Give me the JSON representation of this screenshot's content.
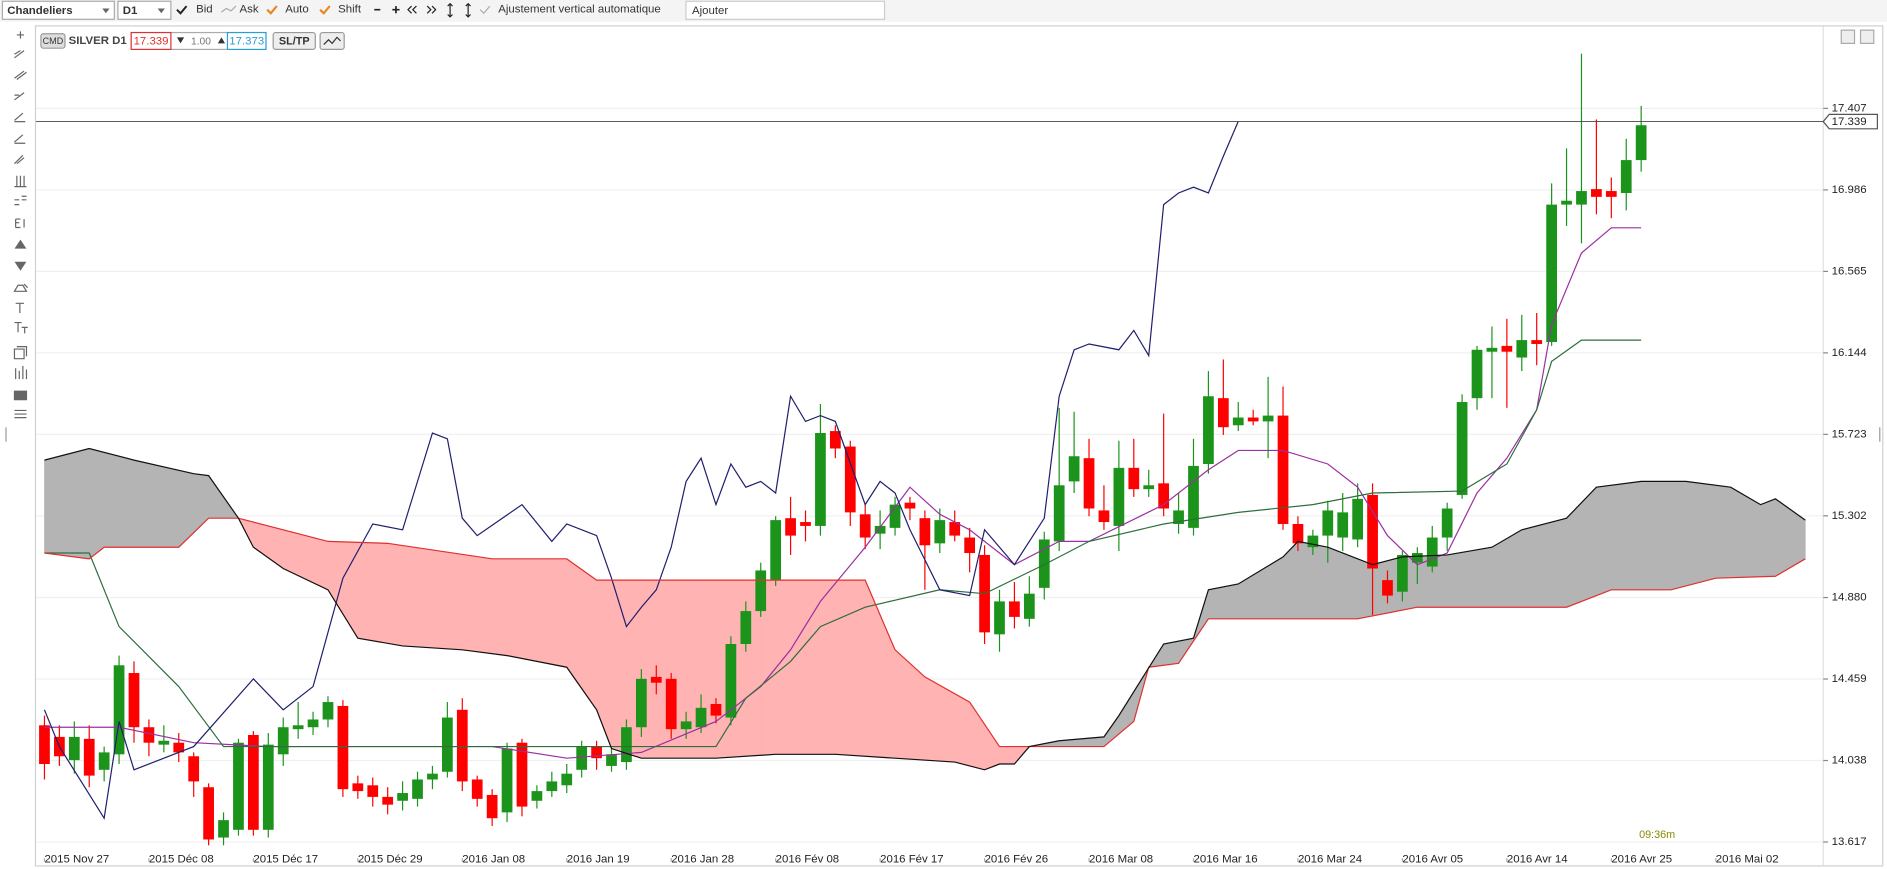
{
  "toolbar": {
    "chart_style": "Chandeliers",
    "timeframe": "D1",
    "options": [
      "Bid",
      "Ask",
      "Auto",
      "Shift"
    ],
    "auto_scale": "Ajustement vertical automatique",
    "search_placeholder": "Ajouter"
  },
  "header": {
    "tag": "CMD",
    "bid": 17.339,
    "lot": "1.00",
    "ask": 17.373,
    "sltp": "SL/TP"
  },
  "status": {
    "time": "09:36m"
  },
  "chart_data": {
    "type": "candlestick",
    "overlay": "ichimoku",
    "title": "SILVER D1",
    "xlim": [
      -0.56,
      119.2
    ],
    "ylim": [
      13.54,
      17.83
    ],
    "grid": true,
    "up_color": "#1c941c",
    "down_color": "#ff0000",
    "cloud_colors": [
      "#ffb3b3",
      "#b4b4b4"
    ],
    "current_price": 17.339,
    "yticks": [
      13.617,
      14.038,
      14.459,
      {
        "value": 14.88,
        "label": "14.880"
      },
      15.302,
      15.723,
      16.144,
      16.565,
      16.986,
      17.407
    ],
    "xticks": [
      {
        "value": 0,
        "label": "2015 Nov 27"
      },
      {
        "value": 7,
        "label": "2015 Déc 08"
      },
      {
        "value": 14,
        "label": "2015 Déc 17"
      },
      {
        "value": 21,
        "label": "2015 Déc 29"
      },
      {
        "value": 28,
        "label": "2016 Jan 08"
      },
      {
        "value": 35,
        "label": "2016 Jan 19"
      },
      {
        "value": 42,
        "label": "2016 Jan 28"
      },
      {
        "value": 49,
        "label": "2016 Fév 08"
      },
      {
        "value": 56,
        "label": "2016 Fév 17"
      },
      {
        "value": 63,
        "label": "2016 Fév 26"
      },
      {
        "value": 70,
        "label": "2016 Mar 08"
      },
      {
        "value": 77,
        "label": "2016 Mar 16"
      },
      {
        "value": 84,
        "label": "2016 Mar 24"
      },
      {
        "value": 91,
        "label": "2016 Avr 05"
      },
      {
        "value": 98,
        "label": "2016 Avr 14"
      },
      {
        "value": 105,
        "label": "2016 Avr 25"
      },
      {
        "value": 112,
        "label": "2016 Mai 02"
      }
    ],
    "open": [
      14.22,
      14.16,
      14.04,
      14.15,
      13.99,
      14.07,
      14.49,
      14.21,
      14.12,
      14.13,
      14.06,
      13.9,
      13.64,
      13.68,
      14.17,
      13.68,
      14.07,
      14.2,
      14.21,
      14.25,
      14.32,
      13.92,
      13.91,
      13.85,
      13.83,
      13.84,
      13.94,
      13.98,
      14.3,
      13.94,
      13.86,
      13.77,
      14.13,
      13.83,
      13.88,
      13.91,
      13.99,
      14.11,
      14.01,
      14.03,
      14.21,
      14.47,
      14.46,
      14.2,
      14.21,
      14.33,
      14.26,
      14.64,
      14.81,
      14.97,
      15.29,
      15.27,
      15.25,
      15.74,
      15.66,
      15.31,
      15.21,
      15.24,
      15.37,
      15.29,
      15.16,
      15.27,
      15.19,
      15.1,
      14.69,
      14.86,
      14.77,
      14.93,
      15.17,
      15.48,
      15.6,
      15.33,
      15.25,
      15.55,
      15.44,
      15.47,
      15.26,
      15.24,
      15.57,
      15.91,
      15.77,
      15.81,
      15.79,
      15.82,
      15.26,
      15.14,
      15.2,
      15.19,
      15.18,
      15.41,
      14.97,
      14.91,
      15.06,
      15.04,
      15.19,
      15.41,
      15.91,
      16.15,
      16.18,
      16.12,
      16.21,
      16.2,
      16.91,
      16.91,
      16.99,
      16.98,
      16.97,
      17.14
    ],
    "high": [
      14.27,
      14.22,
      14.24,
      14.22,
      14.11,
      14.58,
      14.55,
      14.25,
      14.22,
      14.18,
      14.08,
      13.92,
      13.77,
      14.15,
      14.19,
      14.18,
      14.26,
      14.34,
      14.29,
      14.37,
      14.35,
      13.96,
      13.95,
      13.9,
      13.93,
      13.98,
      14.01,
      14.34,
      14.36,
      13.96,
      13.89,
      14.13,
      14.15,
      13.91,
      13.98,
      14.02,
      14.14,
      14.14,
      14.1,
      14.25,
      14.51,
      14.53,
      14.49,
      14.29,
      14.38,
      14.36,
      14.68,
      14.86,
      15.06,
      15.3,
      15.4,
      15.33,
      15.88,
      15.77,
      15.69,
      15.36,
      15.33,
      15.4,
      15.4,
      15.33,
      15.34,
      15.33,
      15.24,
      15.15,
      14.92,
      14.96,
      14.99,
      15.22,
      15.86,
      15.84,
      15.7,
      15.46,
      15.69,
      15.7,
      15.54,
      15.83,
      15.42,
      15.7,
      16.05,
      16.11,
      15.89,
      15.85,
      16.02,
      15.97,
      15.3,
      15.23,
      15.38,
      15.42,
      15.47,
      15.47,
      15.02,
      15.12,
      15.14,
      15.25,
      15.37,
      15.93,
      16.18,
      16.28,
      16.32,
      16.34,
      16.35,
      17.02,
      17.2,
      17.69,
      17.35,
      17.05,
      17.25,
      17.42
    ],
    "low": [
      13.94,
      14.01,
      13.97,
      13.9,
      13.93,
      14.02,
      14.13,
      14.06,
      14.08,
      14.03,
      13.85,
      13.6,
      13.6,
      13.65,
      13.65,
      13.64,
      14.01,
      14.15,
      14.17,
      14.21,
      13.85,
      13.84,
      13.8,
      13.76,
      13.78,
      13.8,
      13.89,
      13.95,
      13.88,
      13.8,
      13.7,
      13.72,
      13.75,
      13.79,
      13.85,
      13.87,
      13.95,
      13.99,
      13.98,
      13.99,
      14.16,
      14.38,
      14.15,
      14.15,
      14.18,
      14.23,
      14.22,
      14.6,
      14.78,
      14.94,
      15.1,
      15.17,
      15.2,
      15.6,
      15.25,
      15.13,
      15.13,
      15.2,
      15.28,
      14.92,
      15.11,
      15.17,
      15.01,
      14.64,
      14.6,
      14.72,
      14.73,
      14.87,
      15.12,
      15.42,
      15.3,
      15.23,
      15.12,
      15.4,
      15.4,
      15.3,
      15.21,
      15.2,
      15.52,
      15.72,
      15.74,
      15.77,
      15.6,
      15.23,
      15.12,
      15.1,
      15.06,
      15.12,
      15.14,
      14.79,
      14.85,
      14.86,
      14.95,
      15.01,
      15.12,
      15.39,
      15.85,
      15.91,
      15.86,
      16.05,
      16.08,
      16.18,
      16.8,
      16.71,
      16.86,
      16.84,
      16.88,
      17.08
    ],
    "close": [
      14.02,
      14.06,
      14.16,
      13.96,
      14.08,
      14.53,
      14.21,
      14.13,
      14.14,
      14.08,
      13.93,
      13.63,
      13.73,
      14.13,
      13.68,
      14.12,
      14.21,
      14.22,
      14.25,
      14.34,
      13.89,
      13.88,
      13.85,
      13.81,
      13.87,
      13.94,
      13.97,
      14.26,
      13.93,
      13.84,
      13.74,
      14.1,
      13.8,
      13.88,
      13.93,
      13.97,
      14.11,
      14.05,
      14.07,
      14.21,
      14.46,
      14.44,
      14.2,
      14.24,
      14.31,
      14.27,
      14.64,
      14.81,
      15.02,
      15.28,
      15.2,
      15.25,
      15.73,
      15.65,
      15.32,
      15.19,
      15.25,
      15.36,
      15.34,
      15.15,
      15.28,
      15.2,
      15.11,
      14.7,
      14.86,
      14.78,
      14.9,
      15.18,
      15.46,
      15.61,
      15.34,
      15.27,
      15.55,
      15.44,
      15.46,
      15.34,
      15.33,
      15.56,
      15.92,
      15.76,
      15.81,
      15.79,
      15.82,
      15.26,
      15.16,
      15.2,
      15.33,
      15.32,
      15.39,
      15.03,
      14.89,
      15.1,
      15.11,
      15.19,
      15.34,
      15.89,
      16.16,
      16.17,
      16.15,
      16.21,
      16.19,
      16.91,
      16.93,
      16.98,
      16.95,
      16.95,
      17.14,
      17.32
    ],
    "series": [
      {
        "color": "#9b30a0",
        "x": [
          0,
          5,
          10,
          15,
          20,
          25,
          30,
          35,
          40,
          45,
          48,
          50,
          52,
          55,
          58,
          60,
          62,
          65,
          68,
          70,
          75,
          78,
          80,
          83,
          86,
          88,
          90,
          92,
          94,
          96,
          98,
          100,
          101,
          103,
          105,
          107
        ],
        "values": [
          14.21,
          14.21,
          14.13,
          14.11,
          14.11,
          14.11,
          14.11,
          14.05,
          14.08,
          14.24,
          14.42,
          14.61,
          14.86,
          15.14,
          15.45,
          15.31,
          15.23,
          15.05,
          15.17,
          15.17,
          15.36,
          15.54,
          15.64,
          15.64,
          15.57,
          15.45,
          15.2,
          15.05,
          15.11,
          15.42,
          15.6,
          15.85,
          16.29,
          16.66,
          16.79,
          16.79
        ]
      },
      {
        "color": "#2e6e3e",
        "x": [
          0,
          3,
          5,
          9,
          12,
          40,
          45,
          47,
          50,
          52,
          55,
          60,
          63,
          67,
          70,
          75,
          80,
          85,
          89,
          95,
          98,
          100,
          101,
          103,
          107
        ],
        "values": [
          15.11,
          15.11,
          14.73,
          14.42,
          14.11,
          14.11,
          14.11,
          14.36,
          14.55,
          14.73,
          14.83,
          14.92,
          14.9,
          15.05,
          15.17,
          15.26,
          15.32,
          15.36,
          15.42,
          15.43,
          15.57,
          15.85,
          16.1,
          16.21,
          16.21
        ]
      },
      {
        "color": "#1f1f6e",
        "x": [
          0,
          1,
          4,
          5,
          6,
          10,
          14,
          16,
          18,
          20,
          22,
          24,
          26,
          27,
          28,
          29,
          32,
          34,
          35,
          37,
          38,
          39,
          40,
          41,
          42,
          43,
          44,
          45,
          46,
          47,
          48,
          49,
          50,
          51,
          52,
          53,
          55,
          56,
          57,
          58,
          60,
          62,
          63,
          65,
          67,
          68,
          69,
          70,
          72,
          73,
          74,
          75,
          76,
          77,
          78,
          79,
          80
        ],
        "values": [
          14.3,
          14.11,
          13.74,
          14.24,
          13.99,
          14.11,
          14.46,
          14.3,
          14.42,
          14.98,
          15.26,
          15.23,
          15.73,
          15.7,
          15.29,
          15.2,
          15.36,
          15.17,
          15.26,
          15.2,
          14.98,
          14.73,
          14.83,
          14.92,
          15.14,
          15.48,
          15.6,
          15.36,
          15.57,
          15.45,
          15.48,
          15.42,
          15.92,
          15.79,
          15.82,
          15.79,
          15.36,
          15.48,
          15.42,
          15.23,
          14.92,
          14.89,
          15.23,
          15.05,
          15.29,
          15.92,
          16.16,
          16.19,
          16.16,
          16.26,
          16.13,
          16.91,
          16.97,
          17.0,
          16.97,
          17.16,
          17.34
        ]
      },
      {
        "color": "#e03030",
        "x": [
          0,
          3,
          4,
          9,
          11,
          13,
          19,
          23,
          30,
          35,
          37,
          55,
          57,
          59,
          62,
          64,
          66,
          71,
          73,
          74,
          76,
          78,
          88,
          92,
          102,
          105,
          109,
          112,
          116,
          118
        ],
        "values": [
          15.11,
          15.08,
          15.14,
          15.14,
          15.29,
          15.29,
          15.17,
          15.16,
          15.08,
          15.08,
          14.97,
          14.97,
          14.61,
          14.47,
          14.34,
          14.11,
          14.11,
          14.11,
          14.24,
          14.52,
          14.54,
          14.77,
          14.77,
          14.83,
          14.83,
          14.92,
          14.92,
          14.98,
          14.99,
          15.08
        ]
      },
      {
        "color": "#111111",
        "x": [
          0,
          3,
          6,
          10,
          11,
          13,
          14,
          16,
          19,
          21,
          24,
          28,
          31,
          35,
          37,
          38,
          40,
          45,
          49,
          53,
          57,
          61,
          63,
          64,
          65,
          66,
          68,
          71,
          72,
          75,
          77,
          78,
          80,
          83,
          84,
          86,
          88,
          89,
          91,
          94,
          97,
          99,
          102,
          104,
          107,
          110,
          113,
          115,
          116,
          118
        ],
        "values": [
          15.59,
          15.65,
          15.59,
          15.52,
          15.51,
          15.29,
          15.14,
          15.03,
          14.92,
          14.67,
          14.63,
          14.61,
          14.58,
          14.52,
          14.3,
          14.1,
          14.05,
          14.05,
          14.07,
          14.07,
          14.05,
          14.03,
          13.99,
          14.02,
          14.02,
          14.11,
          14.14,
          14.16,
          14.27,
          14.64,
          14.67,
          14.92,
          14.95,
          15.09,
          15.17,
          15.14,
          15.08,
          15.05,
          15.09,
          15.1,
          15.14,
          15.23,
          15.29,
          15.45,
          15.48,
          15.48,
          15.45,
          15.36,
          15.39,
          15.28
        ]
      }
    ]
  }
}
